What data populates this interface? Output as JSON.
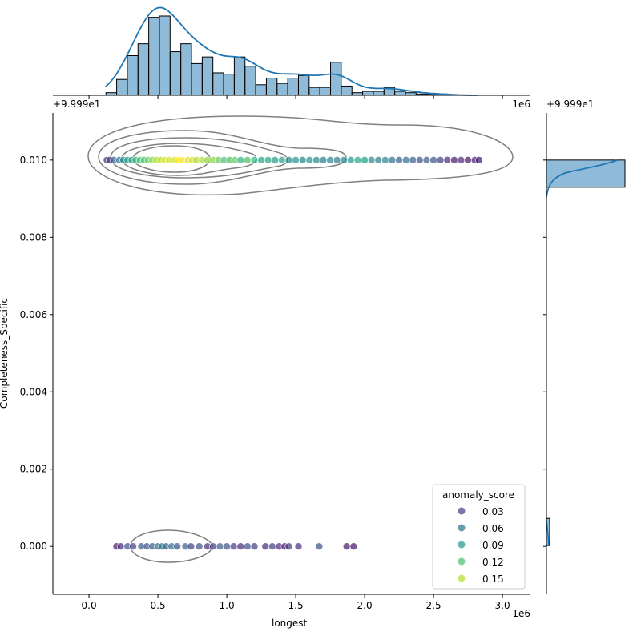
{
  "chart_data": {
    "type": "scatter",
    "xlabel": "longest",
    "ylabel": "Completeness_Specific",
    "x_offset_label": "1e6",
    "y_offset_label": "+9.999e1",
    "top_offset_label": "+9.999e1",
    "top_scale_label": "1e6",
    "right_offset_label": "+9.999e1",
    "xlim": [
      -262000,
      3203000
    ],
    "ylim": [
      -0.00124,
      0.01122
    ],
    "x_ticks": [
      {
        "v": 0,
        "label": "0.0"
      },
      {
        "v": 500000,
        "label": "0.5"
      },
      {
        "v": 1000000,
        "label": "1.0"
      },
      {
        "v": 1500000,
        "label": "1.5"
      },
      {
        "v": 2000000,
        "label": "2.0"
      },
      {
        "v": 2500000,
        "label": "2.5"
      },
      {
        "v": 3000000,
        "label": "3.0"
      }
    ],
    "y_ticks": [
      {
        "v": 0,
        "label": "0.000"
      },
      {
        "v": 0.002,
        "label": "0.002"
      },
      {
        "v": 0.004,
        "label": "0.004"
      },
      {
        "v": 0.006,
        "label": "0.006"
      },
      {
        "v": 0.008,
        "label": "0.008"
      },
      {
        "v": 0.01,
        "label": "0.010"
      }
    ],
    "legend": {
      "title": "anomaly_score",
      "placement": "lower right",
      "entries": [
        {
          "label": "0.03",
          "v": 0.03
        },
        {
          "label": "0.06",
          "v": 0.06
        },
        {
          "label": "0.09",
          "v": 0.09
        },
        {
          "label": "0.12",
          "v": 0.12
        },
        {
          "label": "0.15",
          "v": 0.15
        }
      ]
    },
    "colormap": "viridis",
    "hist_color": "#1f77b4",
    "contour_color": "#808080",
    "series_top": {
      "y": 0.01,
      "points": [
        [
          0.13,
          0.02
        ],
        [
          0.15,
          0.04
        ],
        [
          0.18,
          0.05
        ],
        [
          0.22,
          0.07
        ],
        [
          0.25,
          0.08
        ],
        [
          0.28,
          0.09
        ],
        [
          0.31,
          0.1
        ],
        [
          0.34,
          0.11
        ],
        [
          0.37,
          0.12
        ],
        [
          0.4,
          0.12
        ],
        [
          0.43,
          0.13
        ],
        [
          0.46,
          0.14
        ],
        [
          0.49,
          0.15
        ],
        [
          0.52,
          0.15
        ],
        [
          0.55,
          0.16
        ],
        [
          0.58,
          0.16
        ],
        [
          0.62,
          0.16
        ],
        [
          0.65,
          0.17
        ],
        [
          0.68,
          0.17
        ],
        [
          0.72,
          0.16
        ],
        [
          0.75,
          0.16
        ],
        [
          0.78,
          0.15
        ],
        [
          0.82,
          0.15
        ],
        [
          0.86,
          0.14
        ],
        [
          0.9,
          0.14
        ],
        [
          0.94,
          0.13
        ],
        [
          0.98,
          0.12
        ],
        [
          1.02,
          0.12
        ],
        [
          1.06,
          0.13
        ],
        [
          1.1,
          0.11
        ],
        [
          1.15,
          0.12
        ],
        [
          1.2,
          0.11
        ],
        [
          1.25,
          0.1
        ],
        [
          1.3,
          0.1
        ],
        [
          1.35,
          0.09
        ],
        [
          1.4,
          0.1
        ],
        [
          1.45,
          0.08
        ],
        [
          1.5,
          0.09
        ],
        [
          1.55,
          0.07
        ],
        [
          1.6,
          0.09
        ],
        [
          1.65,
          0.08
        ],
        [
          1.7,
          0.07
        ],
        [
          1.75,
          0.08
        ],
        [
          1.8,
          0.07
        ],
        [
          1.85,
          0.08
        ],
        [
          1.9,
          0.09
        ],
        [
          1.95,
          0.1
        ],
        [
          2.0,
          0.09
        ],
        [
          2.05,
          0.08
        ],
        [
          2.1,
          0.07
        ],
        [
          2.15,
          0.08
        ],
        [
          2.2,
          0.06
        ],
        [
          2.25,
          0.05
        ],
        [
          2.3,
          0.06
        ],
        [
          2.35,
          0.05
        ],
        [
          2.4,
          0.04
        ],
        [
          2.45,
          0.05
        ],
        [
          2.5,
          0.04
        ],
        [
          2.55,
          0.03
        ],
        [
          2.6,
          0.02
        ],
        [
          2.65,
          0.01
        ],
        [
          2.7,
          0.02
        ],
        [
          2.75,
          0.01
        ],
        [
          2.8,
          0.01
        ],
        [
          2.83,
          0.01
        ]
      ]
    },
    "series_bottom": {
      "y": 0.0,
      "points": [
        [
          0.2,
          0.01
        ],
        [
          0.23,
          0.02
        ],
        [
          0.28,
          0.04
        ],
        [
          0.32,
          0.03
        ],
        [
          0.38,
          0.05
        ],
        [
          0.42,
          0.04
        ],
        [
          0.46,
          0.05
        ],
        [
          0.5,
          0.06
        ],
        [
          0.53,
          0.07
        ],
        [
          0.56,
          0.05
        ],
        [
          0.6,
          0.06
        ],
        [
          0.64,
          0.04
        ],
        [
          0.7,
          0.05
        ],
        [
          0.74,
          0.03
        ],
        [
          0.8,
          0.04
        ],
        [
          0.86,
          0.02
        ],
        [
          0.9,
          0.03
        ],
        [
          0.95,
          0.05
        ],
        [
          1.0,
          0.04
        ],
        [
          1.05,
          0.03
        ],
        [
          1.1,
          0.02
        ],
        [
          1.15,
          0.04
        ],
        [
          1.2,
          0.03
        ],
        [
          1.28,
          0.02
        ],
        [
          1.33,
          0.03
        ],
        [
          1.38,
          0.02
        ],
        [
          1.42,
          0.01
        ],
        [
          1.45,
          0.03
        ],
        [
          1.52,
          0.02
        ],
        [
          1.67,
          0.04
        ],
        [
          1.87,
          0.01
        ],
        [
          1.92,
          0.01
        ]
      ]
    },
    "x_hist": {
      "start": 0.123,
      "bin_width": 0.0776,
      "counts": [
        2,
        12,
        30,
        39,
        59,
        60,
        33,
        39,
        24,
        29,
        17,
        16,
        29,
        22,
        8,
        13,
        9,
        13,
        15,
        6,
        6,
        25,
        7,
        2,
        3,
        3,
        6,
        3,
        2,
        1,
        1,
        1,
        0,
        0,
        0
      ]
    },
    "y_hist": {
      "bins": [
        {
          "y": 0.01,
          "count": 98
        },
        {
          "y": 0.0,
          "count": 4
        }
      ]
    }
  }
}
